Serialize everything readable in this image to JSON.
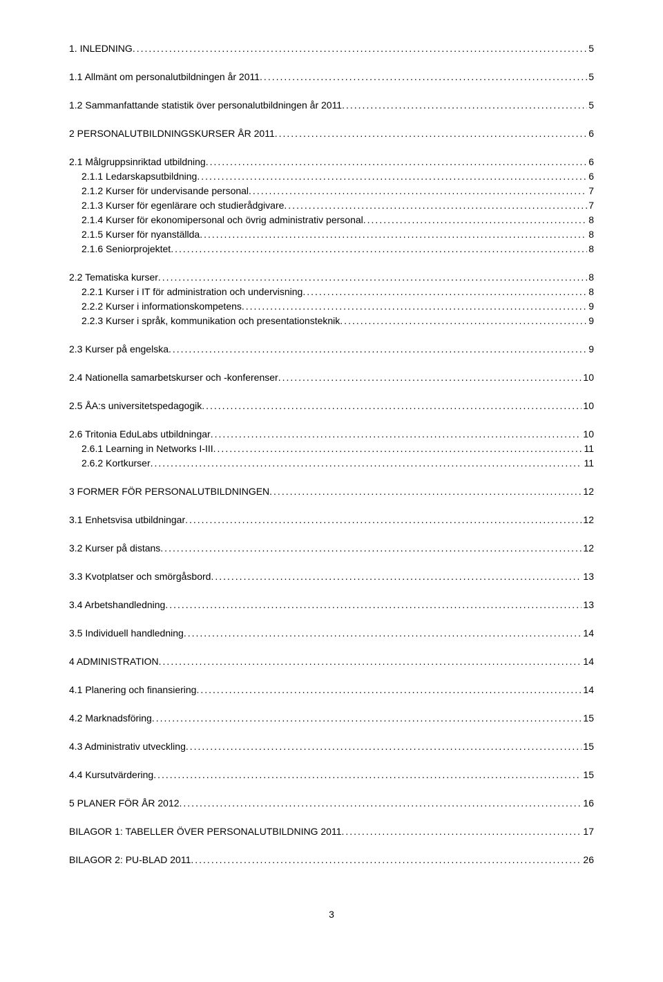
{
  "toc": {
    "text_color": "#000000",
    "background_color": "#ffffff",
    "font_family": "Arial",
    "font_size": 14,
    "sections": [
      {
        "title": "1. INLEDNING",
        "page": "5",
        "level": 0,
        "space_after": true
      },
      {
        "title": "1.1 Allmänt om personalutbildningen år 2011",
        "page": "5",
        "level": 0,
        "space_after": true
      },
      {
        "title": "1.2 Sammanfattande statistik över personalutbildningen år 2011",
        "page": "5",
        "level": 0,
        "space_after": true
      },
      {
        "title": "2 PERSONALUTBILDNINGSKURSER ÅR 2011",
        "page": "6",
        "level": 0,
        "space_after": true
      },
      {
        "title": "2.1 Målgruppsinriktad utbildning",
        "page": "6",
        "level": 0,
        "space_after": false
      },
      {
        "title": "2.1.1 Ledarskapsutbildning",
        "page": "6",
        "level": 1,
        "space_after": false
      },
      {
        "title": "2.1.2 Kurser för undervisande personal",
        "page": "7",
        "level": 1,
        "space_after": false
      },
      {
        "title": "2.1.3 Kurser för egenlärare och studierådgivare",
        "page": "7",
        "level": 1,
        "space_after": false
      },
      {
        "title": "2.1.4 Kurser för ekonomipersonal och övrig administrativ personal",
        "page": "8",
        "level": 1,
        "space_after": false
      },
      {
        "title": "2.1.5 Kurser för nyanställda",
        "page": "8",
        "level": 1,
        "space_after": false
      },
      {
        "title": "2.1.6 Seniorprojektet",
        "page": "8",
        "level": 1,
        "space_after": true
      },
      {
        "title": "2.2 Tematiska kurser",
        "page": "8",
        "level": 0,
        "space_after": false
      },
      {
        "title": "2.2.1 Kurser i IT för administration och undervisning",
        "page": "8",
        "level": 1,
        "space_after": false
      },
      {
        "title": "2.2.2 Kurser i informationskompetens",
        "page": "9",
        "level": 1,
        "space_after": false
      },
      {
        "title": "2.2.3 Kurser i språk, kommunikation och presentationsteknik",
        "page": "9",
        "level": 1,
        "space_after": true
      },
      {
        "title": "2.3 Kurser på engelska",
        "page": "9",
        "level": 0,
        "space_after": true
      },
      {
        "title": "2.4 Nationella samarbetskurser och -konferenser",
        "page": "10",
        "level": 0,
        "space_after": true
      },
      {
        "title": "2.5 ÅA:s universitetspedagogik",
        "page": "10",
        "level": 0,
        "space_after": true
      },
      {
        "title": "2.6 Tritonia EduLabs utbildningar",
        "page": "10",
        "level": 0,
        "space_after": false
      },
      {
        "title": "2.6.1 Learning in Networks I-III",
        "page": "11",
        "level": 1,
        "space_after": false
      },
      {
        "title": "2.6.2 Kortkurser",
        "page": "11",
        "level": 1,
        "space_after": true
      },
      {
        "title": "3 FORMER FÖR PERSONALUTBILDNINGEN",
        "page": "12",
        "level": 0,
        "space_after": true
      },
      {
        "title": "3.1 Enhetsvisa utbildningar",
        "page": "12",
        "level": 0,
        "space_after": true
      },
      {
        "title": "3.2 Kurser på distans",
        "page": "12",
        "level": 0,
        "space_after": true
      },
      {
        "title": "3.3 Kvotplatser och smörgåsbord",
        "page": "13",
        "level": 0,
        "space_after": true
      },
      {
        "title": "3.4 Arbetshandledning",
        "page": "13",
        "level": 0,
        "space_after": true
      },
      {
        "title": "3.5 Individuell handledning",
        "page": "14",
        "level": 0,
        "space_after": true
      },
      {
        "title": "4 ADMINISTRATION",
        "page": "14",
        "level": 0,
        "space_after": true
      },
      {
        "title": "4.1 Planering och finansiering",
        "page": "14",
        "level": 0,
        "space_after": true
      },
      {
        "title": "4.2 Marknadsföring",
        "page": "15",
        "level": 0,
        "space_after": true
      },
      {
        "title": "4.3 Administrativ utveckling",
        "page": "15",
        "level": 0,
        "space_after": true
      },
      {
        "title": "4.4 Kursutvärdering",
        "page": "15",
        "level": 0,
        "space_after": true
      },
      {
        "title": "5 PLANER FÖR ÅR 2012",
        "page": "16",
        "level": 0,
        "space_after": true
      },
      {
        "title": "BILAGOR 1: TABELLER ÖVER PERSONALUTBILDNING 2011",
        "page": "17",
        "level": 0,
        "space_after": true
      },
      {
        "title": "BILAGOR 2: PU-BLAD 2011",
        "page": "26",
        "level": 0,
        "space_after": false
      }
    ]
  },
  "page_number": "3"
}
